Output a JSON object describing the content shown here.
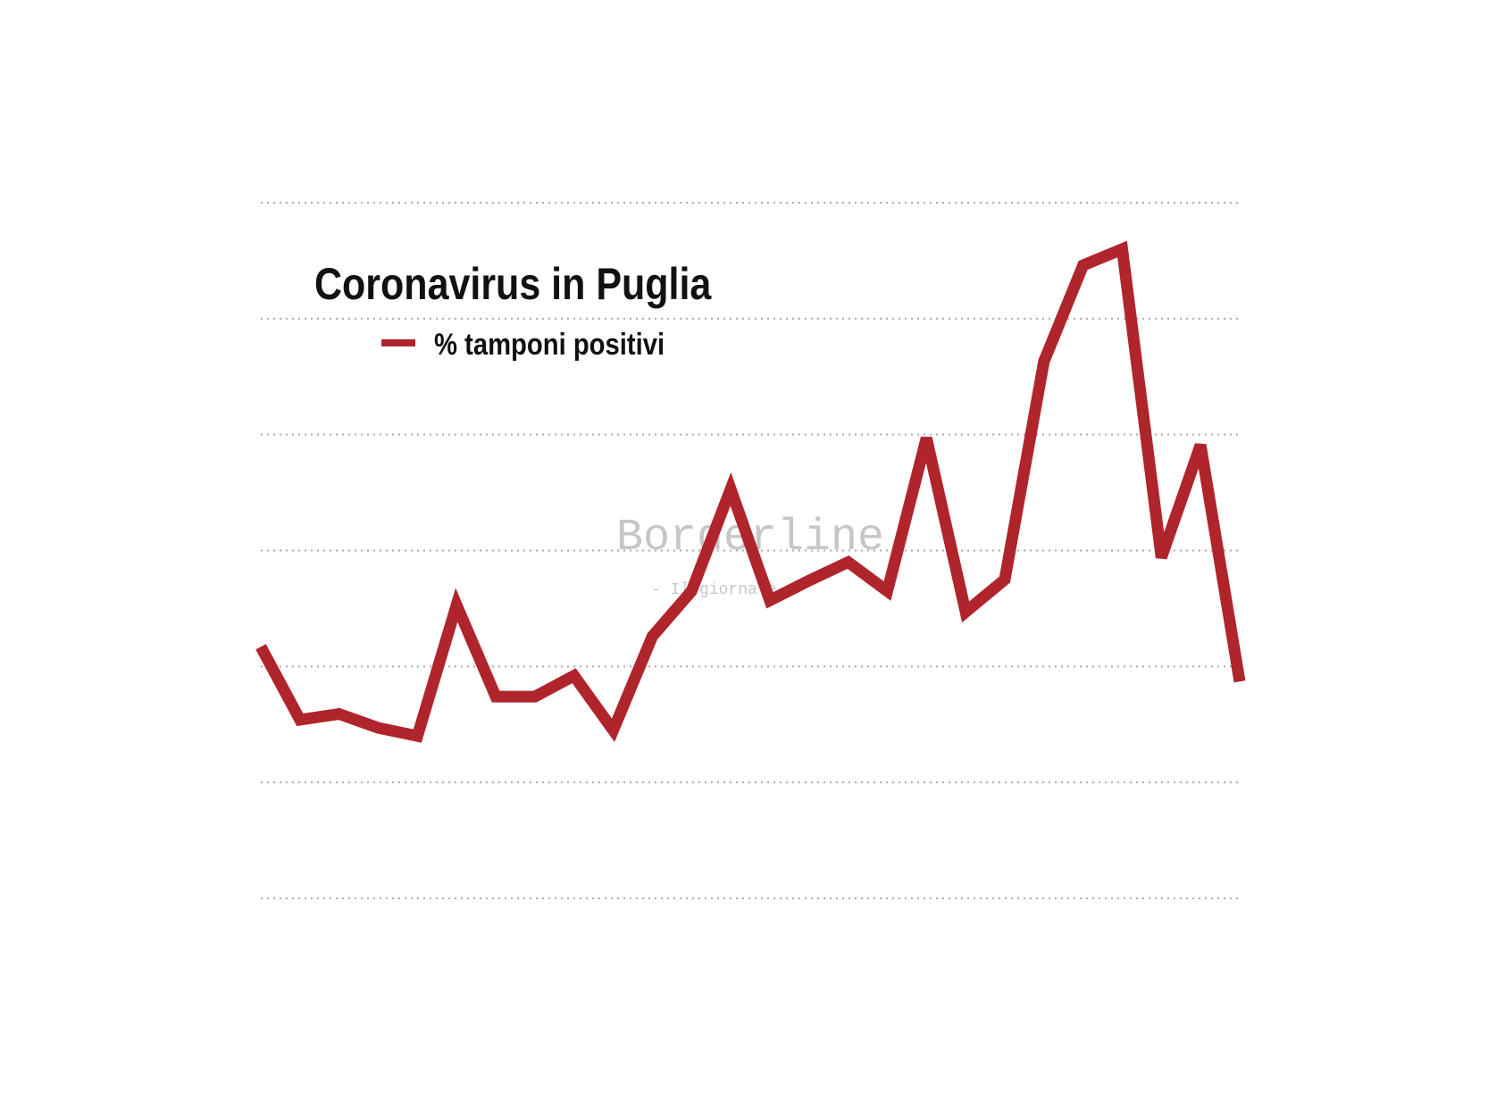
{
  "chart_data": {
    "type": "line",
    "title": "Coronavirus in Puglia",
    "watermark": "Borderline",
    "watermark_sub": "- Il giornale -",
    "x": [
      0,
      1,
      2,
      3,
      4,
      5,
      6,
      7,
      8,
      9,
      10,
      11,
      12,
      13,
      14,
      15,
      16,
      17,
      18,
      19,
      20,
      21,
      22,
      23,
      24,
      25
    ],
    "xlim": [
      0,
      25
    ],
    "series": [
      {
        "name": "% tamponi positivi",
        "color": "#b0242c",
        "values": [
          2.17,
          1.54,
          1.59,
          1.47,
          1.4,
          2.53,
          1.74,
          1.74,
          1.92,
          1.45,
          2.26,
          2.65,
          3.53,
          2.57,
          2.74,
          2.9,
          2.65,
          3.97,
          2.47,
          2.75,
          4.63,
          5.46,
          5.6,
          2.94,
          3.91,
          1.87
        ]
      }
    ],
    "ylim": [
      0,
      6
    ],
    "yticks": [
      0,
      1,
      2,
      3,
      4,
      5,
      6
    ],
    "tick_labels": false,
    "grid": true
  }
}
